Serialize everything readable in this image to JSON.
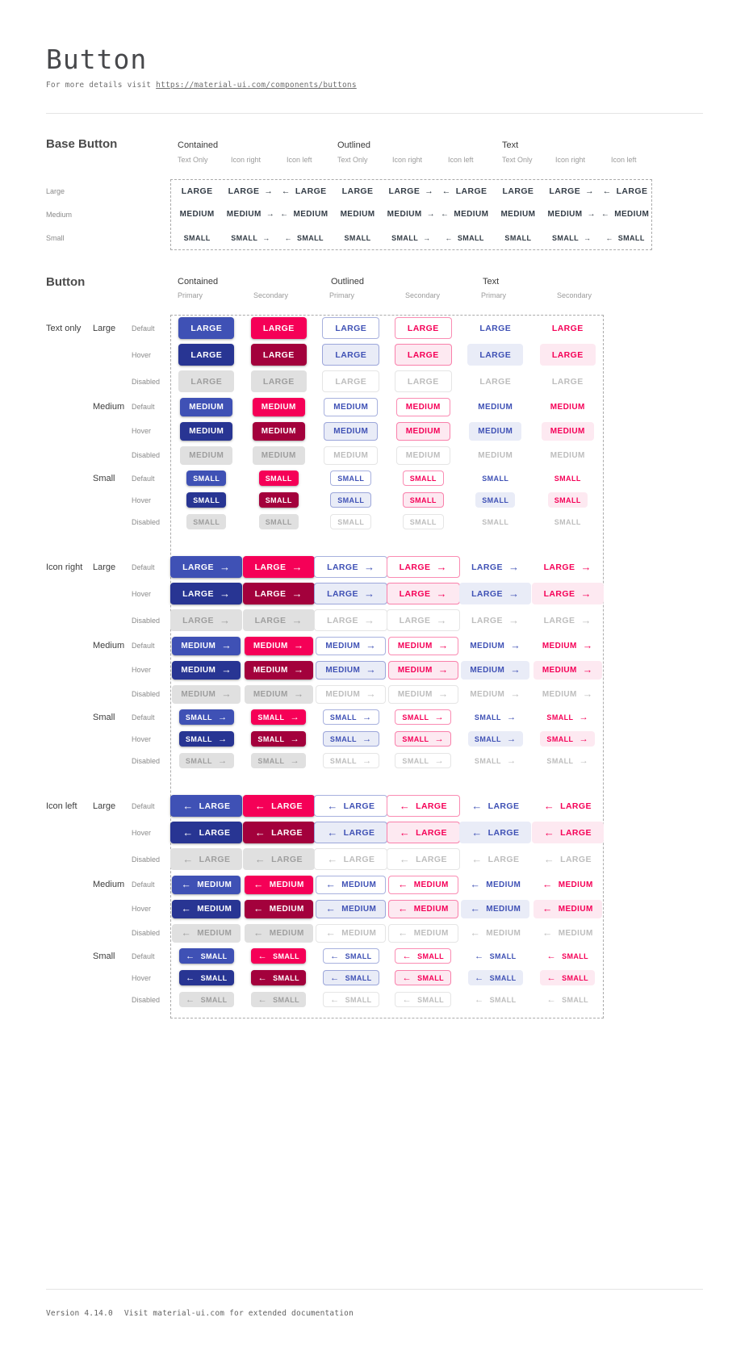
{
  "page": {
    "title": "Button",
    "subtitle_prefix": "For more details visit ",
    "subtitle_link": "https://material-ui.com/components/buttons"
  },
  "colors": {
    "primary": "#3f51b5",
    "primary_hover": "#283593",
    "primary_tint": "#e9ecf7",
    "secondary": "#f50057",
    "secondary_hover": "#a3013c",
    "secondary_tint": "#fde9f1",
    "disabled_bg": "#e0e0e0",
    "disabled_text": "#9e9e9e"
  },
  "icons": {
    "arrow_right": "→",
    "arrow_left": "←"
  },
  "base_section": {
    "heading": "Base Button",
    "groups": [
      "Contained",
      "Outlined",
      "Text"
    ],
    "subcolumns": [
      "Text Only",
      "Icon right",
      "Icon left"
    ],
    "rows": [
      {
        "label": "Large",
        "text": "LARGE"
      },
      {
        "label": "Medium",
        "text": "MEDIUM"
      },
      {
        "label": "Small",
        "text": "SMALL"
      }
    ]
  },
  "button_section": {
    "heading": "Button",
    "groups": [
      "Contained",
      "Outlined",
      "Text"
    ],
    "subcolumns": [
      "Primary",
      "Secondary"
    ],
    "icon_groups": [
      {
        "label": "Text only",
        "icon": "none"
      },
      {
        "label": "Icon right",
        "icon": "right"
      },
      {
        "label": "Icon left",
        "icon": "left"
      }
    ],
    "sizes": [
      {
        "label": "Large",
        "text": "LARGE"
      },
      {
        "label": "Medium",
        "text": "MEDIUM"
      },
      {
        "label": "Small",
        "text": "SMALL"
      }
    ],
    "states": [
      "Default",
      "Hover",
      "Disabled"
    ]
  },
  "footer": {
    "version": "Version 4.14.0",
    "note": "Visit material-ui.com for extended documentation"
  }
}
